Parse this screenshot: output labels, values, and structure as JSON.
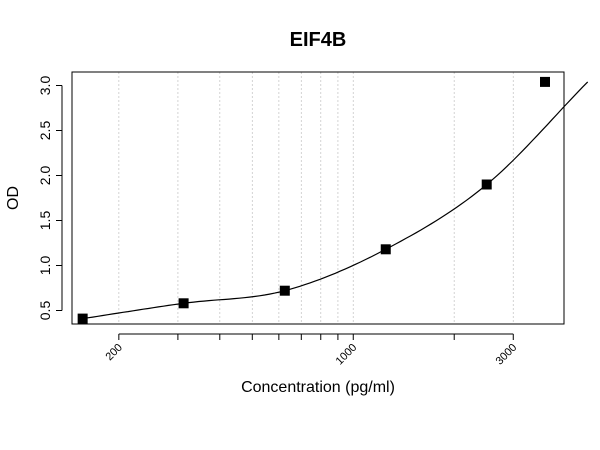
{
  "chart_data": {
    "type": "scatter",
    "title": "EIF4B",
    "xlabel": "Concentration (pg/ml)",
    "ylabel": "OD",
    "x_scale": "log",
    "xlim": [
      145,
      4250
    ],
    "ylim": [
      0.35,
      3.15
    ],
    "y_ticks": [
      "0.5",
      "1.0",
      "1.5",
      "2.0",
      "2.5",
      "3.0"
    ],
    "x_tick_labels": [
      "200",
      "1000",
      "3000"
    ],
    "x_gridlines": [
      200,
      300,
      400,
      500,
      600,
      700,
      800,
      900,
      1000,
      2000,
      3000
    ],
    "grid": "vertical dotted",
    "marker": "square",
    "series": [
      {
        "x": [
          156,
          312,
          625,
          1250,
          2500,
          5000
        ],
        "y": [
          0.41,
          0.58,
          0.72,
          1.18,
          1.9,
          3.04
        ]
      }
    ],
    "fit_curve": "smooth"
  }
}
